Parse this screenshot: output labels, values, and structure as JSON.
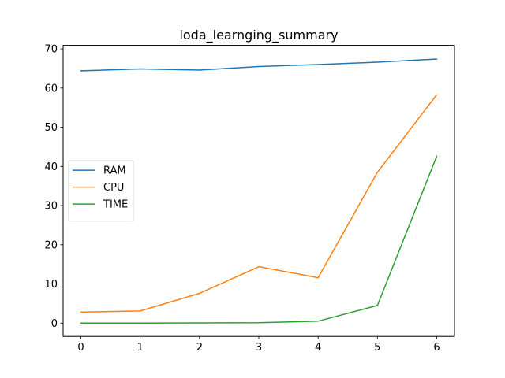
{
  "chart_data": {
    "type": "line",
    "title": "loda_learnging_summary",
    "xlabel": "",
    "ylabel": "",
    "x": [
      0,
      1,
      2,
      3,
      4,
      5,
      6
    ],
    "xlim": [
      -0.3,
      6.3
    ],
    "ylim": [
      -3.4,
      70.9
    ],
    "xticks": [
      0,
      1,
      2,
      3,
      4,
      5,
      6
    ],
    "yticks": [
      0,
      10,
      20,
      30,
      40,
      50,
      60,
      70
    ],
    "grid": false,
    "legend_position": "center-left",
    "series": [
      {
        "name": "RAM",
        "color": "#1f77b4",
        "values": [
          64.4,
          64.9,
          64.6,
          65.5,
          66.0,
          66.6,
          67.4
        ]
      },
      {
        "name": "CPU",
        "color": "#ff7f0e",
        "values": [
          2.8,
          3.1,
          7.6,
          14.4,
          11.6,
          38.5,
          58.3
        ]
      },
      {
        "name": "TIME",
        "color": "#2ca02c",
        "values": [
          0.0,
          0.0,
          0.05,
          0.1,
          0.5,
          4.5,
          42.6
        ]
      }
    ]
  }
}
